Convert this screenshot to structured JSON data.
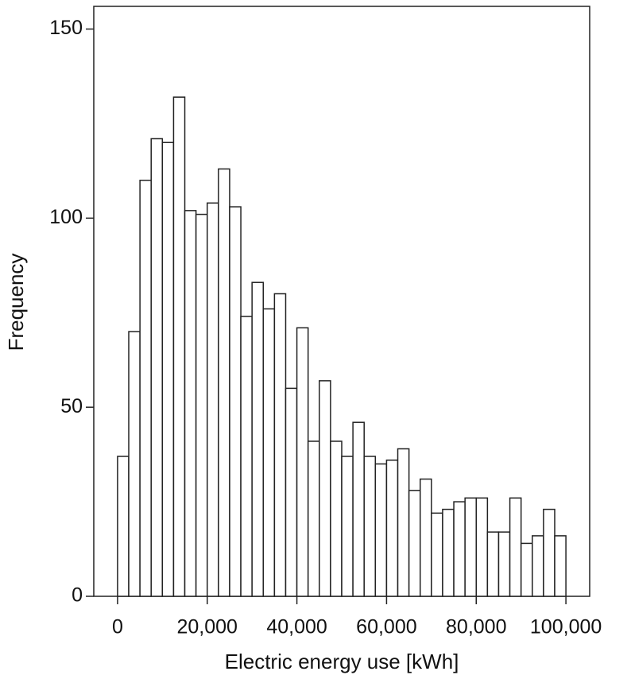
{
  "chart_data": {
    "type": "histogram",
    "x_label": "Electric energy use [kWh]",
    "y_label": "Frequency",
    "bins": [
      0,
      2500,
      5000,
      7500,
      10000,
      12500,
      15000,
      17500,
      20000,
      22500,
      25000,
      27500,
      30000,
      32500,
      35000,
      37500,
      40000,
      42500,
      45000,
      47500,
      50000,
      52500,
      55000,
      57500,
      60000,
      62500,
      65000,
      67500,
      70000,
      72500,
      75000,
      77500,
      80000,
      82500,
      85000,
      87500,
      90000,
      92500,
      95000,
      97500,
      100000
    ],
    "values": [
      37,
      70,
      110,
      121,
      120,
      132,
      102,
      101,
      104,
      113,
      103,
      74,
      83,
      76,
      80,
      55,
      71,
      41,
      57,
      41,
      37,
      46,
      37,
      35,
      36,
      39,
      28,
      31,
      22,
      23,
      25,
      26,
      26,
      17,
      17,
      26,
      14,
      16,
      23,
      16
    ],
    "color": "#ffffff",
    "edge_color": "#222222",
    "xlim": [
      -5300,
      105300
    ],
    "ylim": [
      0,
      156
    ],
    "xticks": [
      0,
      {
        "value": 20000,
        "label": "20,000"
      },
      {
        "value": 40000,
        "label": "40,000"
      },
      {
        "value": 60000,
        "label": "60,000"
      },
      {
        "value": 80000,
        "label": "80,000"
      },
      {
        "value": 100000,
        "label": "100,000"
      }
    ],
    "yticks": [
      0,
      50,
      100,
      150
    ]
  }
}
